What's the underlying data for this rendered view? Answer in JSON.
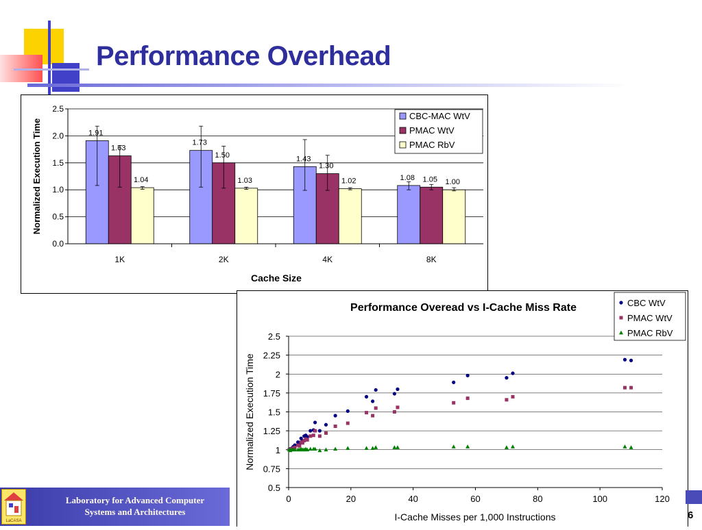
{
  "slide": {
    "title": "Performance Overhead",
    "footer_line1": "Laboratory for Advanced Computer",
    "footer_line2": "Systems and Architectures",
    "logo_text": "LaCASA",
    "page_number": "6"
  },
  "colors": {
    "title": "#2e2e9c",
    "series1": "#9999ff",
    "series2": "#993366",
    "series3": "#ffffcc",
    "scatter1": "#000080",
    "scatter2": "#993366",
    "scatter3": "#008000"
  },
  "chart_data": [
    {
      "type": "bar",
      "xlabel": "Cache Size",
      "ylabel": "Normalized Execution Time",
      "ylim": [
        0,
        2.5
      ],
      "yticks": [
        "0.0",
        "0.5",
        "1.0",
        "1.5",
        "2.0",
        "2.5"
      ],
      "grid": true,
      "legend_position": "top-right",
      "categories": [
        "1K",
        "2K",
        "4K",
        "8K"
      ],
      "series": [
        {
          "name": "CBC-MAC WtV",
          "values": [
            1.91,
            1.73,
            1.43,
            1.08
          ],
          "labels": [
            "1.91",
            "1.73",
            "1.43",
            "1.08"
          ],
          "err_low": [
            1.08,
            1.05,
            0.99,
            1.0
          ],
          "err_high": [
            2.18,
            2.18,
            1.93,
            1.15
          ]
        },
        {
          "name": "PMAC WtV",
          "values": [
            1.63,
            1.5,
            1.3,
            1.05
          ],
          "labels": [
            "1.63",
            "1.50",
            "1.30",
            "1.05"
          ],
          "err_low": [
            1.05,
            1.03,
            0.99,
            1.0
          ],
          "err_high": [
            1.82,
            1.81,
            1.64,
            1.1
          ]
        },
        {
          "name": "PMAC RbV",
          "values": [
            1.04,
            1.03,
            1.02,
            1.0
          ],
          "labels": [
            "1.04",
            "1.03",
            "1.02",
            "1.00"
          ],
          "err_low": [
            1.01,
            1.01,
            1.0,
            0.98
          ],
          "err_high": [
            1.06,
            1.05,
            1.04,
            1.04
          ]
        }
      ]
    },
    {
      "type": "scatter",
      "title": "Performance Overead vs I-Cache Miss Rate",
      "xlabel": "I-Cache Misses per 1,000 Instructions",
      "ylabel": "Normalized Execution Time",
      "xlim": [
        0,
        120
      ],
      "ylim": [
        0.5,
        2.5
      ],
      "xticks": [
        "0",
        "20",
        "40",
        "60",
        "80",
        "100",
        "120"
      ],
      "yticks": [
        "0.5",
        "0.75",
        "1",
        "1.25",
        "1.5",
        "1.75",
        "2",
        "2.25",
        "2.5"
      ],
      "grid": true,
      "legend_position": "top-right",
      "series": [
        {
          "name": "CBC WtV",
          "marker": "circle",
          "points": [
            [
              0.2,
              1.0
            ],
            [
              0.5,
              1.01
            ],
            [
              1,
              1.02
            ],
            [
              1.5,
              1.04
            ],
            [
              2,
              1.06
            ],
            [
              3,
              1.1
            ],
            [
              3.5,
              1.08
            ],
            [
              4,
              1.15
            ],
            [
              4.5,
              1.12
            ],
            [
              5,
              1.18
            ],
            [
              5.5,
              1.19
            ],
            [
              6,
              1.17
            ],
            [
              7,
              1.25
            ],
            [
              8,
              1.26
            ],
            [
              8.5,
              1.36
            ],
            [
              10,
              1.25
            ],
            [
              12,
              1.33
            ],
            [
              15,
              1.45
            ],
            [
              19,
              1.51
            ],
            [
              25,
              1.7
            ],
            [
              27,
              1.64
            ],
            [
              28,
              1.79
            ],
            [
              34,
              1.74
            ],
            [
              35,
              1.8
            ],
            [
              53,
              1.89
            ],
            [
              57.5,
              1.98
            ],
            [
              70,
              1.95
            ],
            [
              72,
              2.01
            ],
            [
              108,
              2.19
            ],
            [
              110,
              2.18
            ]
          ]
        },
        {
          "name": "PMAC WtV",
          "marker": "square",
          "points": [
            [
              0.2,
              1.0
            ],
            [
              0.5,
              1.0
            ],
            [
              1,
              1.01
            ],
            [
              1.5,
              1.02
            ],
            [
              2,
              1.03
            ],
            [
              3,
              1.06
            ],
            [
              3.5,
              1.05
            ],
            [
              4,
              1.1
            ],
            [
              4.5,
              1.09
            ],
            [
              5,
              1.12
            ],
            [
              5.5,
              1.14
            ],
            [
              6,
              1.13
            ],
            [
              7,
              1.18
            ],
            [
              8,
              1.19
            ],
            [
              8.5,
              1.25
            ],
            [
              10,
              1.18
            ],
            [
              12,
              1.22
            ],
            [
              15,
              1.31
            ],
            [
              19,
              1.35
            ],
            [
              25,
              1.49
            ],
            [
              27,
              1.45
            ],
            [
              28,
              1.55
            ],
            [
              34,
              1.5
            ],
            [
              35,
              1.56
            ],
            [
              53,
              1.62
            ],
            [
              57.5,
              1.68
            ],
            [
              70,
              1.66
            ],
            [
              72,
              1.7
            ],
            [
              108,
              1.82
            ],
            [
              110,
              1.82
            ]
          ]
        },
        {
          "name": "PMAC RbV",
          "marker": "triangle",
          "points": [
            [
              0.2,
              1.0
            ],
            [
              0.5,
              0.99
            ],
            [
              1,
              1.0
            ],
            [
              1.5,
              1.0
            ],
            [
              2,
              1.0
            ],
            [
              3,
              1.0
            ],
            [
              3.5,
              1.0
            ],
            [
              4,
              1.01
            ],
            [
              4.5,
              1.0
            ],
            [
              5,
              1.0
            ],
            [
              5.5,
              1.01
            ],
            [
              6,
              1.0
            ],
            [
              7,
              1.01
            ],
            [
              8,
              1.01
            ],
            [
              8.5,
              1.01
            ],
            [
              10,
              0.99
            ],
            [
              12,
              1.0
            ],
            [
              15,
              1.01
            ],
            [
              19,
              1.02
            ],
            [
              25,
              1.02
            ],
            [
              27,
              1.02
            ],
            [
              28,
              1.03
            ],
            [
              34,
              1.03
            ],
            [
              35,
              1.03
            ],
            [
              53,
              1.04
            ],
            [
              57.5,
              1.04
            ],
            [
              70,
              1.03
            ],
            [
              72,
              1.04
            ],
            [
              108,
              1.04
            ],
            [
              110,
              1.03
            ]
          ]
        }
      ]
    }
  ]
}
